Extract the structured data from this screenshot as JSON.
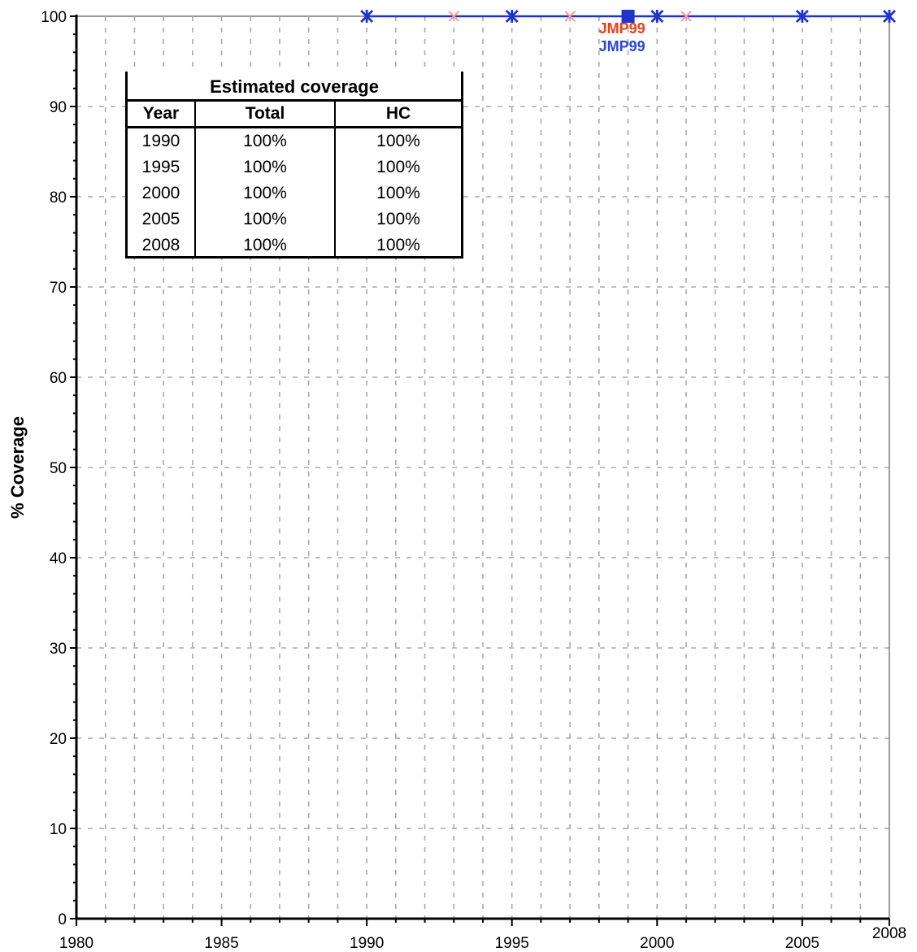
{
  "chart_data": {
    "type": "line",
    "title": "",
    "xlabel": "",
    "ylabel": "% Coverage",
    "xlim": [
      1980,
      2008
    ],
    "ylim": [
      0,
      100
    ],
    "x_ticks": [
      1980,
      1985,
      1990,
      1995,
      2000,
      2005,
      2008
    ],
    "y_ticks": [
      0,
      10,
      20,
      30,
      40,
      50,
      60,
      70,
      80,
      90,
      100
    ],
    "grid": true,
    "series": [
      {
        "color": "#2233cc",
        "marker": "asterisk",
        "x": [
          1990,
          1995,
          2000,
          2005,
          2008
        ],
        "y": [
          100,
          100,
          100,
          100,
          100
        ]
      },
      {
        "color": "#ff9999",
        "marker": "x",
        "x": [
          1993,
          1997,
          2001
        ],
        "y": [
          100,
          100,
          100
        ]
      },
      {
        "color": "#2233cc",
        "marker": "square",
        "x": [
          1999
        ],
        "y": [
          100
        ]
      }
    ],
    "annotations": [
      {
        "text": "JMP99",
        "color": "#e8401c",
        "x": 1999,
        "y": 100,
        "offset": 1
      },
      {
        "text": "JMP99",
        "color": "#2a47d6",
        "x": 1999,
        "y": 100,
        "offset": 2
      }
    ],
    "table": {
      "title": "Estimated coverage",
      "headers": [
        "Year",
        "Total",
        "HC"
      ],
      "rows": [
        [
          "1990",
          "100%",
          "100%"
        ],
        [
          "1995",
          "100%",
          "100%"
        ],
        [
          "2000",
          "100%",
          "100%"
        ],
        [
          "2005",
          "100%",
          "100%"
        ],
        [
          "2008",
          "100%",
          "100%"
        ]
      ]
    }
  }
}
